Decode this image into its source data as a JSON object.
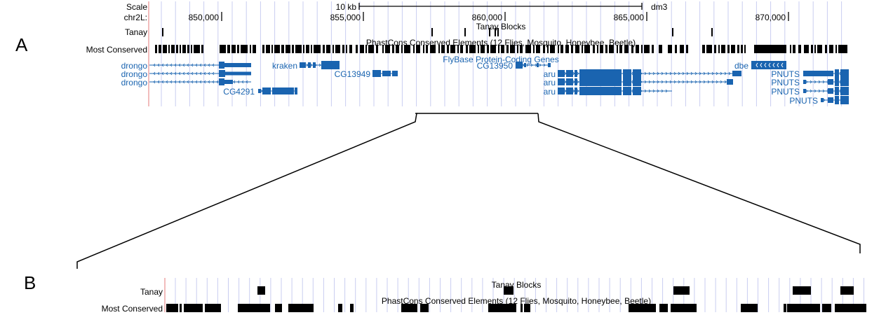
{
  "panel_a": {
    "label": "A",
    "scale_label": "Scale",
    "chrom_label": "chr2L:",
    "scale_bar_text": "10 kb",
    "assembly": "dm3",
    "ticks": [
      "850,000",
      "855,000",
      "860,000",
      "865,000",
      "870,000"
    ],
    "tanay_track_label": "Tanay",
    "tanay_track_title": "Tanay Blocks",
    "conserved_track_label": "Most Conserved",
    "conserved_track_title": "PhastCons Conserved Elements (12 Flies, Mosquito, Honeybee, Beetle)",
    "genes_track_title": "FlyBase Protein-Coding Genes",
    "gene_names": [
      "drongo",
      "drongo",
      "drongo",
      "CG4291",
      "kraken",
      "CG13949",
      "CG13950",
      "aru",
      "aru",
      "aru",
      "dbe",
      "PNUTS",
      "PNUTS",
      "PNUTS",
      "PNUTS"
    ]
  },
  "panel_b": {
    "label": "B",
    "tanay_track_label": "Tanay",
    "tanay_track_title": "Tanay Blocks",
    "conserved_track_label": "Most Conserved",
    "conserved_track_title": "PhastCons Conserved Elements (12 Flies, Mosquito, Honeybee, Beetle)"
  },
  "colors": {
    "gene": "#1a64b0",
    "grid": "#c9cdf0",
    "feature": "#000000",
    "left_border": "#e89090"
  }
}
